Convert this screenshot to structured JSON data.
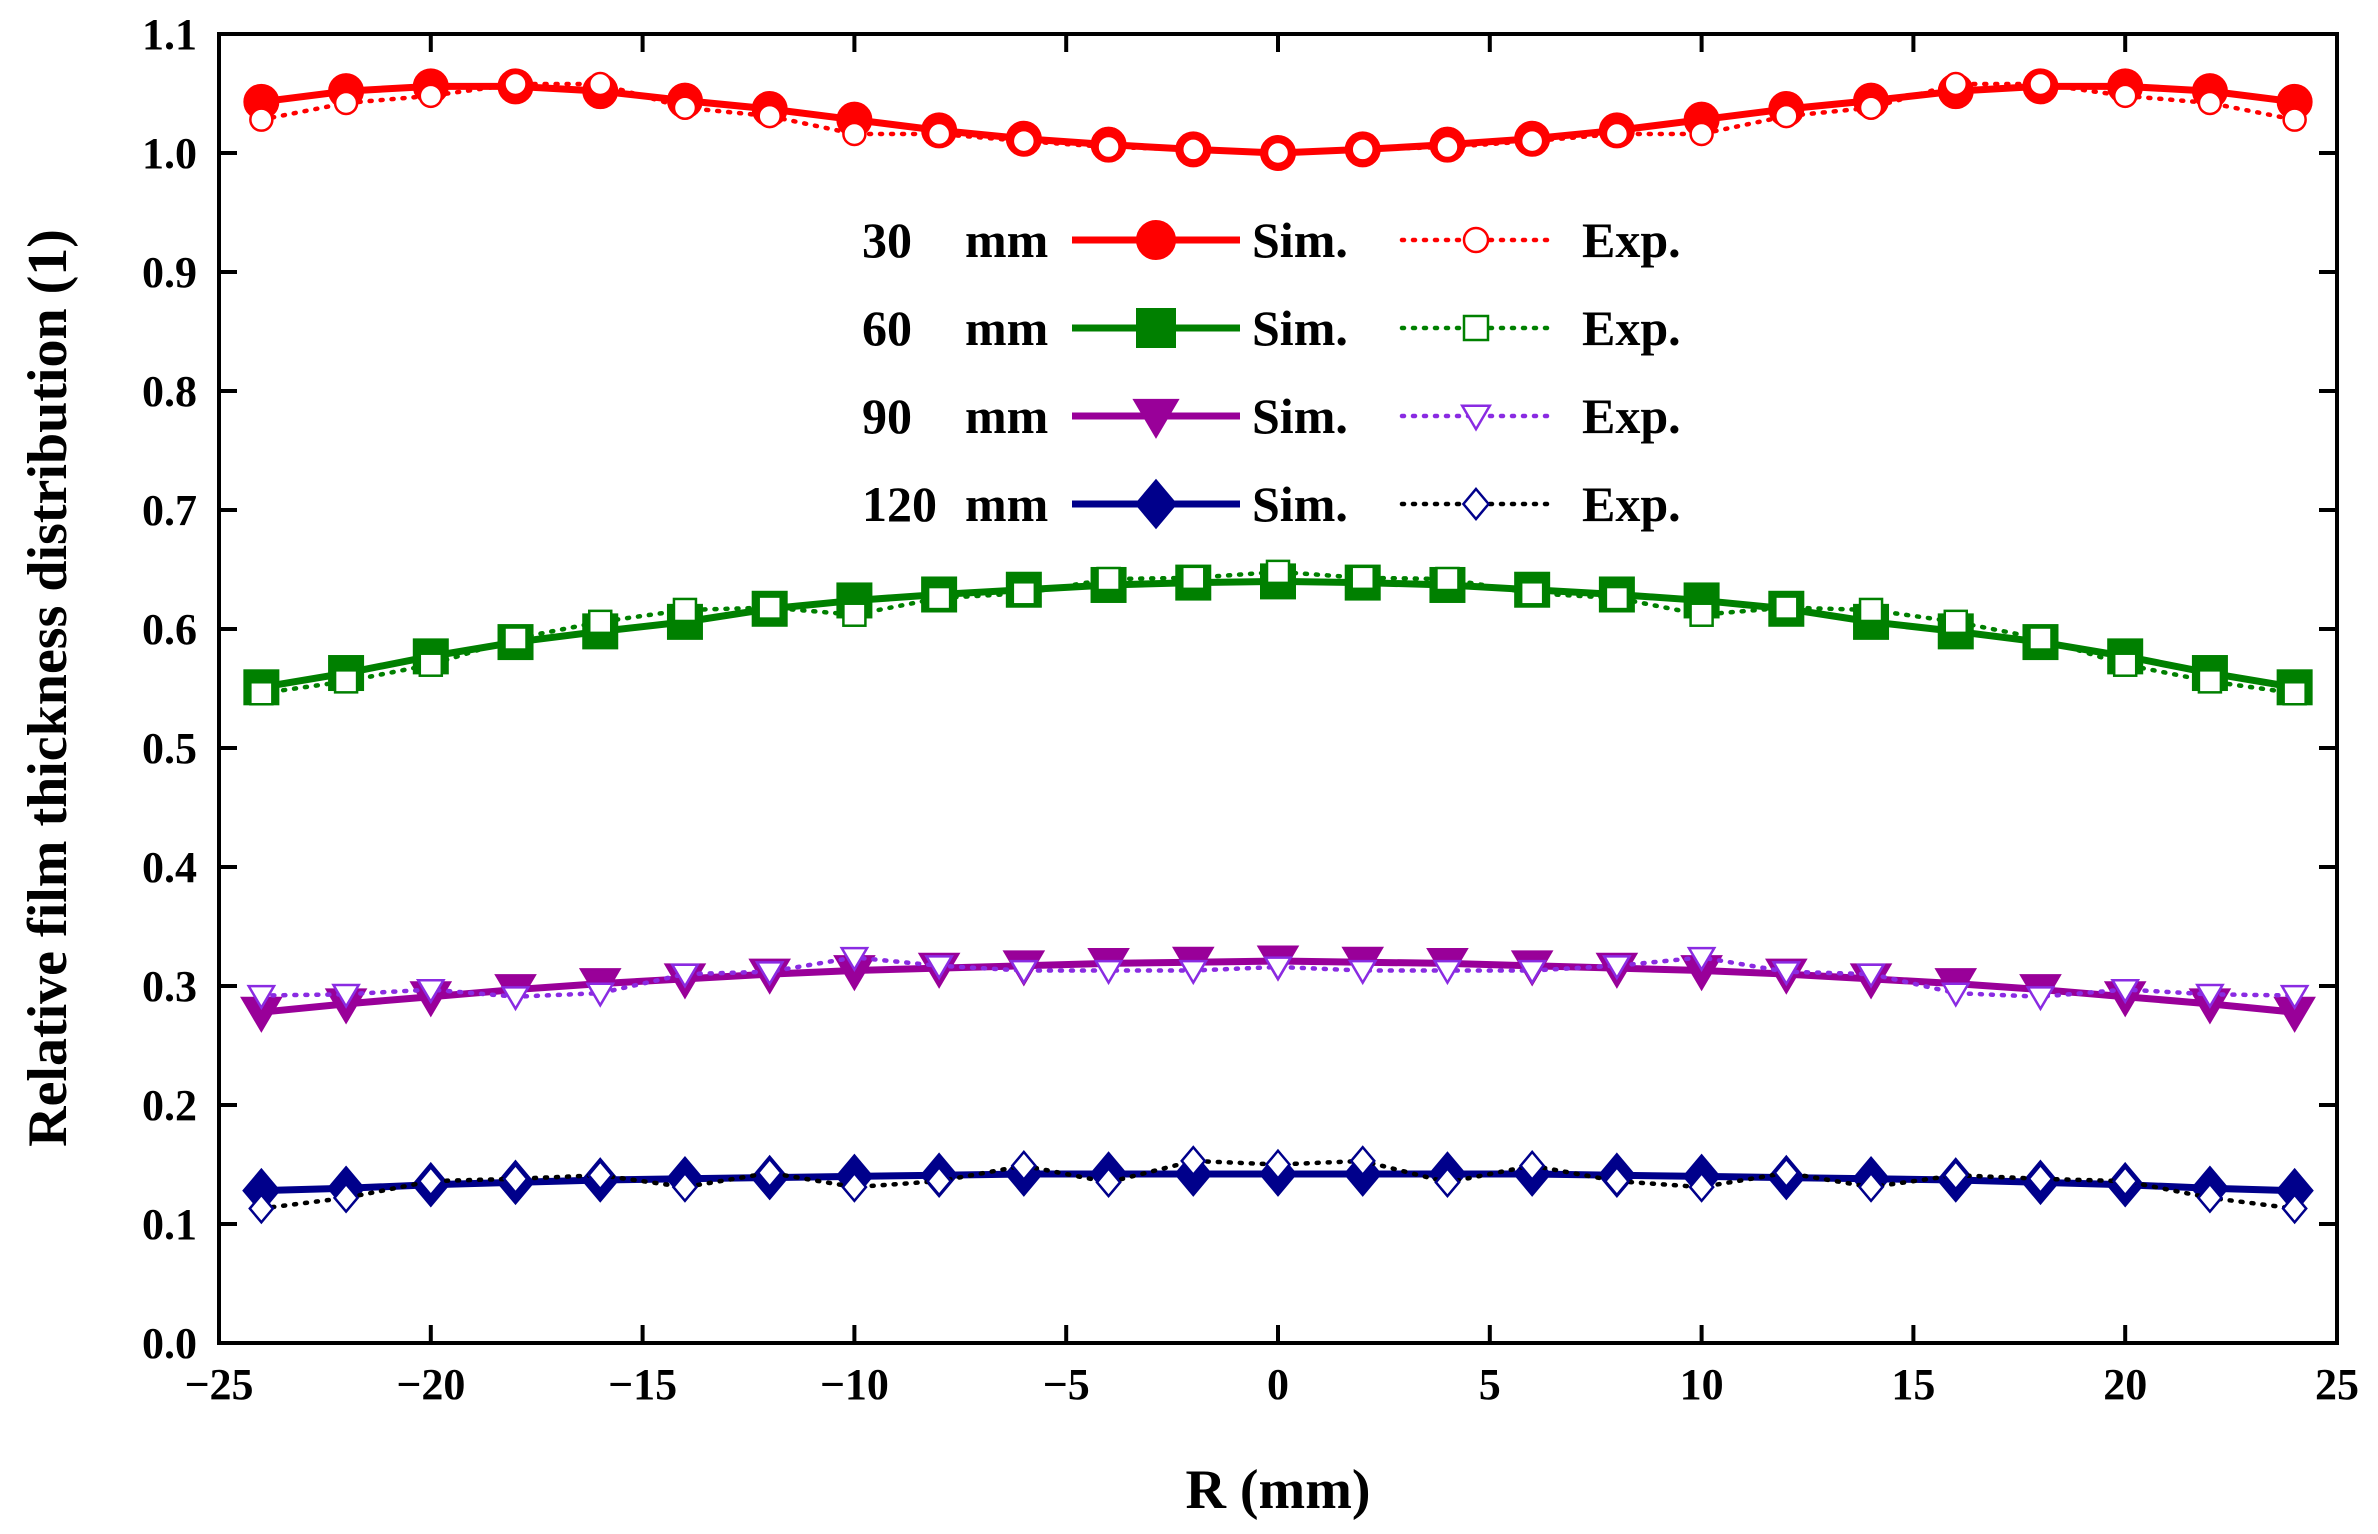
{
  "chart_data": {
    "type": "line",
    "title": "",
    "xlabel": "R (mm)",
    "ylabel": "Relative film thickness distribution (1)",
    "xlim": [
      -25,
      25
    ],
    "ylim": [
      0,
      1.1
    ],
    "xticks": [
      -25,
      -20,
      -15,
      -10,
      -5,
      0,
      5,
      10,
      15,
      20,
      25
    ],
    "xtick_labels": [
      "−25",
      "−20",
      "−15",
      "−10",
      "−5",
      "0",
      "5",
      "10",
      "15",
      "20",
      "25"
    ],
    "yticks": [
      0,
      0.1,
      0.2,
      0.3,
      0.4,
      0.5,
      0.6,
      0.7,
      0.8,
      0.9,
      1.0,
      1.1
    ],
    "ytick_labels": [
      "0.0",
      "0.1",
      "0.2",
      "0.3",
      "0.4",
      "0.5",
      "0.6",
      "0.7",
      "0.8",
      "0.9",
      "1.0",
      "1.1"
    ],
    "grid": false,
    "legend_position": "top-center",
    "x": [
      -24,
      -22,
      -20,
      -18,
      -16,
      -14,
      -12,
      -10,
      -8,
      -6,
      -4,
      -2,
      0,
      2,
      4,
      6,
      8,
      10,
      12,
      14,
      16,
      18,
      20,
      22,
      24
    ],
    "series": [
      {
        "name": "30 mm Sim.",
        "group": "30",
        "unit": "mm",
        "kind": "Sim.",
        "color": "#ff0000",
        "line": "solid",
        "marker": "circle",
        "filled": true,
        "values": [
          1.043,
          1.052,
          1.056,
          1.056,
          1.052,
          1.044,
          1.037,
          1.028,
          1.019,
          1.012,
          1.007,
          1.003,
          1.0,
          1.003,
          1.007,
          1.012,
          1.019,
          1.028,
          1.037,
          1.044,
          1.052,
          1.056,
          1.056,
          1.052,
          1.043
        ]
      },
      {
        "name": "30 mm Exp.",
        "group": "30",
        "unit": "mm",
        "kind": "Exp.",
        "color": "#ff0000",
        "line": "dotted",
        "marker": "circle",
        "filled": false,
        "values": [
          1.028,
          1.042,
          1.048,
          1.058,
          1.058,
          1.038,
          1.031,
          1.016,
          1.016,
          1.01,
          1.005,
          1.003,
          1.0,
          1.003,
          1.005,
          1.01,
          1.016,
          1.016,
          1.031,
          1.038,
          1.058,
          1.058,
          1.048,
          1.042,
          1.028
        ]
      },
      {
        "name": "60 mm Sim.",
        "group": "60",
        "unit": "mm",
        "kind": "Sim.",
        "color": "#008000",
        "line": "solid",
        "marker": "square",
        "filled": true,
        "values": [
          0.551,
          0.563,
          0.577,
          0.589,
          0.598,
          0.606,
          0.617,
          0.624,
          0.629,
          0.633,
          0.637,
          0.639,
          0.64,
          0.639,
          0.637,
          0.633,
          0.629,
          0.624,
          0.617,
          0.606,
          0.598,
          0.589,
          0.577,
          0.563,
          0.551
        ]
      },
      {
        "name": "60 mm Exp.",
        "group": "60",
        "unit": "mm",
        "kind": "Exp.",
        "color": "#008000",
        "line": "dotted",
        "marker": "square",
        "filled": false,
        "values": [
          0.546,
          0.556,
          0.57,
          0.592,
          0.606,
          0.616,
          0.618,
          0.612,
          0.626,
          0.63,
          0.642,
          0.643,
          0.648,
          0.643,
          0.642,
          0.63,
          0.626,
          0.612,
          0.618,
          0.616,
          0.606,
          0.592,
          0.57,
          0.556,
          0.546
        ]
      },
      {
        "name": "90 mm Sim.",
        "group": "90",
        "unit": "mm",
        "kind": "Sim.",
        "color": "#990099",
        "line": "solid",
        "marker": "triangle-down",
        "filled": true,
        "values": [
          0.278,
          0.285,
          0.291,
          0.297,
          0.302,
          0.306,
          0.31,
          0.313,
          0.315,
          0.317,
          0.319,
          0.32,
          0.321,
          0.32,
          0.319,
          0.317,
          0.315,
          0.313,
          0.31,
          0.306,
          0.302,
          0.297,
          0.291,
          0.285,
          0.278
        ]
      },
      {
        "name": "90 mm Exp.",
        "group": "90",
        "unit": "mm",
        "kind": "Exp.",
        "color": "#8a2be2",
        "line": "dotted",
        "marker": "triangle-down",
        "filled": false,
        "values": [
          0.292,
          0.293,
          0.297,
          0.291,
          0.294,
          0.31,
          0.312,
          0.324,
          0.317,
          0.313,
          0.313,
          0.313,
          0.316,
          0.313,
          0.313,
          0.313,
          0.317,
          0.324,
          0.312,
          0.31,
          0.294,
          0.291,
          0.297,
          0.293,
          0.292
        ]
      },
      {
        "name": "120 mm Sim.",
        "group": "120",
        "unit": "mm",
        "kind": "Sim.",
        "color": "#00008b",
        "line": "solid",
        "marker": "diamond",
        "filled": true,
        "values": [
          0.128,
          0.13,
          0.133,
          0.135,
          0.137,
          0.138,
          0.139,
          0.14,
          0.141,
          0.142,
          0.142,
          0.142,
          0.142,
          0.142,
          0.142,
          0.142,
          0.141,
          0.14,
          0.139,
          0.138,
          0.137,
          0.135,
          0.133,
          0.13,
          0.128
        ]
      },
      {
        "name": "120 mm Exp.",
        "group": "120",
        "unit": "mm",
        "kind": "Exp.",
        "color": "#000000",
        "marker_color": "#00008b",
        "line": "dotted",
        "marker": "diamond",
        "filled": false,
        "values": [
          0.113,
          0.122,
          0.136,
          0.138,
          0.141,
          0.131,
          0.143,
          0.131,
          0.136,
          0.149,
          0.135,
          0.153,
          0.15,
          0.153,
          0.135,
          0.149,
          0.136,
          0.131,
          0.143,
          0.131,
          0.141,
          0.138,
          0.136,
          0.122,
          0.113
        ]
      }
    ]
  }
}
